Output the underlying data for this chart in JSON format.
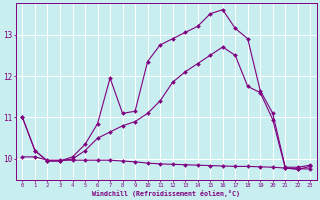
{
  "xlabel": "Windchill (Refroidissement éolien,°C)",
  "background_color": "#c8eef0",
  "grid_color": "#ffffff",
  "line_color": "#800080",
  "x": [
    0,
    1,
    2,
    3,
    4,
    5,
    6,
    7,
    8,
    9,
    10,
    11,
    12,
    13,
    14,
    15,
    16,
    17,
    18,
    19,
    20,
    21,
    22,
    23
  ],
  "line_top": [
    11.0,
    10.2,
    9.95,
    9.95,
    10.05,
    10.35,
    10.85,
    11.95,
    11.1,
    11.15,
    12.35,
    12.75,
    12.9,
    13.05,
    13.2,
    13.5,
    13.6,
    13.15,
    12.9,
    11.65,
    11.1,
    9.8,
    9.8,
    9.85
  ],
  "line_mid": [
    11.0,
    10.2,
    9.95,
    9.95,
    10.0,
    10.2,
    10.5,
    10.65,
    10.8,
    10.9,
    11.1,
    11.4,
    11.85,
    12.1,
    12.3,
    12.5,
    12.7,
    12.5,
    11.75,
    11.6,
    10.95,
    9.78,
    9.75,
    9.82
  ],
  "line_bot": [
    10.05,
    10.05,
    9.97,
    9.97,
    9.97,
    9.97,
    9.97,
    9.97,
    9.95,
    9.93,
    9.9,
    9.88,
    9.87,
    9.86,
    9.85,
    9.84,
    9.83,
    9.82,
    9.82,
    9.81,
    9.8,
    9.78,
    9.76,
    9.76
  ],
  "ylim": [
    9.5,
    13.75
  ],
  "yticks": [
    10,
    11,
    12,
    13
  ],
  "xlim": [
    -0.5,
    23.5
  ],
  "figsize": [
    3.2,
    2.0
  ],
  "dpi": 100
}
